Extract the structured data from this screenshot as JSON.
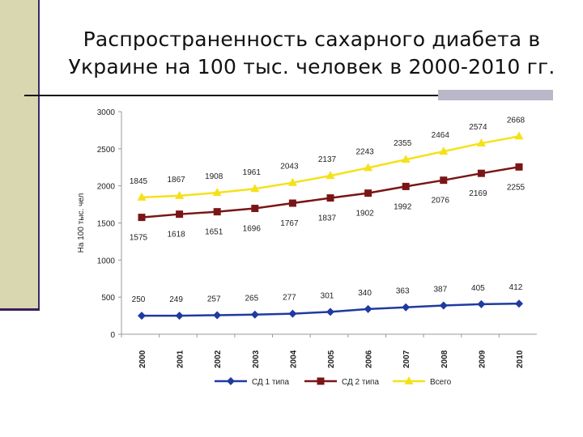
{
  "slide": {
    "title": "Распространенность сахарного диабета в Украине на 100 тыс. человек в 2000-2010 гг."
  },
  "colors": {
    "type1": "#1f3aa0",
    "type2": "#7a1515",
    "total": "#f5e11a",
    "accent_bar": "#d8d7b0"
  },
  "chart_data": {
    "type": "line",
    "title": "",
    "xlabel": "",
    "ylabel": "На 100 тыс. чел",
    "x": [
      "2000",
      "2001",
      "2002",
      "2003",
      "2004",
      "2005",
      "2006",
      "2007",
      "2008",
      "2009",
      "2010"
    ],
    "ylim": [
      0,
      3000
    ],
    "yticks": [
      "0",
      "500",
      "1000",
      "1500",
      "2000",
      "2500",
      "3000"
    ],
    "grid": false,
    "legend_position": "bottom",
    "series": [
      {
        "name": "СД 1 типа",
        "values": [
          250,
          249,
          257,
          265,
          277,
          301,
          340,
          363,
          387,
          405,
          412
        ],
        "labels": [
          "250",
          "249",
          "257",
          "265",
          "277",
          "301",
          "340",
          "363",
          "387",
          "405",
          "412"
        ],
        "marker": "diamond",
        "color": "#1f3aa0"
      },
      {
        "name": "СД 2 типа",
        "values": [
          1575,
          1618,
          1651,
          1696,
          1767,
          1837,
          1902,
          1992,
          2076,
          2169,
          2255
        ],
        "labels": [
          "1575",
          "1618",
          "1651",
          "1696",
          "1767",
          "1837",
          "1902",
          "1992",
          "2076",
          "2169",
          "2255"
        ],
        "marker": "square",
        "color": "#7a1515"
      },
      {
        "name": "Всего",
        "values": [
          1845,
          1867,
          1908,
          1961,
          2043,
          2137,
          2243,
          2355,
          2464,
          2574,
          2668
        ],
        "labels": [
          "1845",
          "1867",
          "1908",
          "1961",
          "2043",
          "2137",
          "2243",
          "2355",
          "2464",
          "2574",
          "2668"
        ],
        "marker": "triangle",
        "color": "#f5e11a"
      }
    ]
  }
}
